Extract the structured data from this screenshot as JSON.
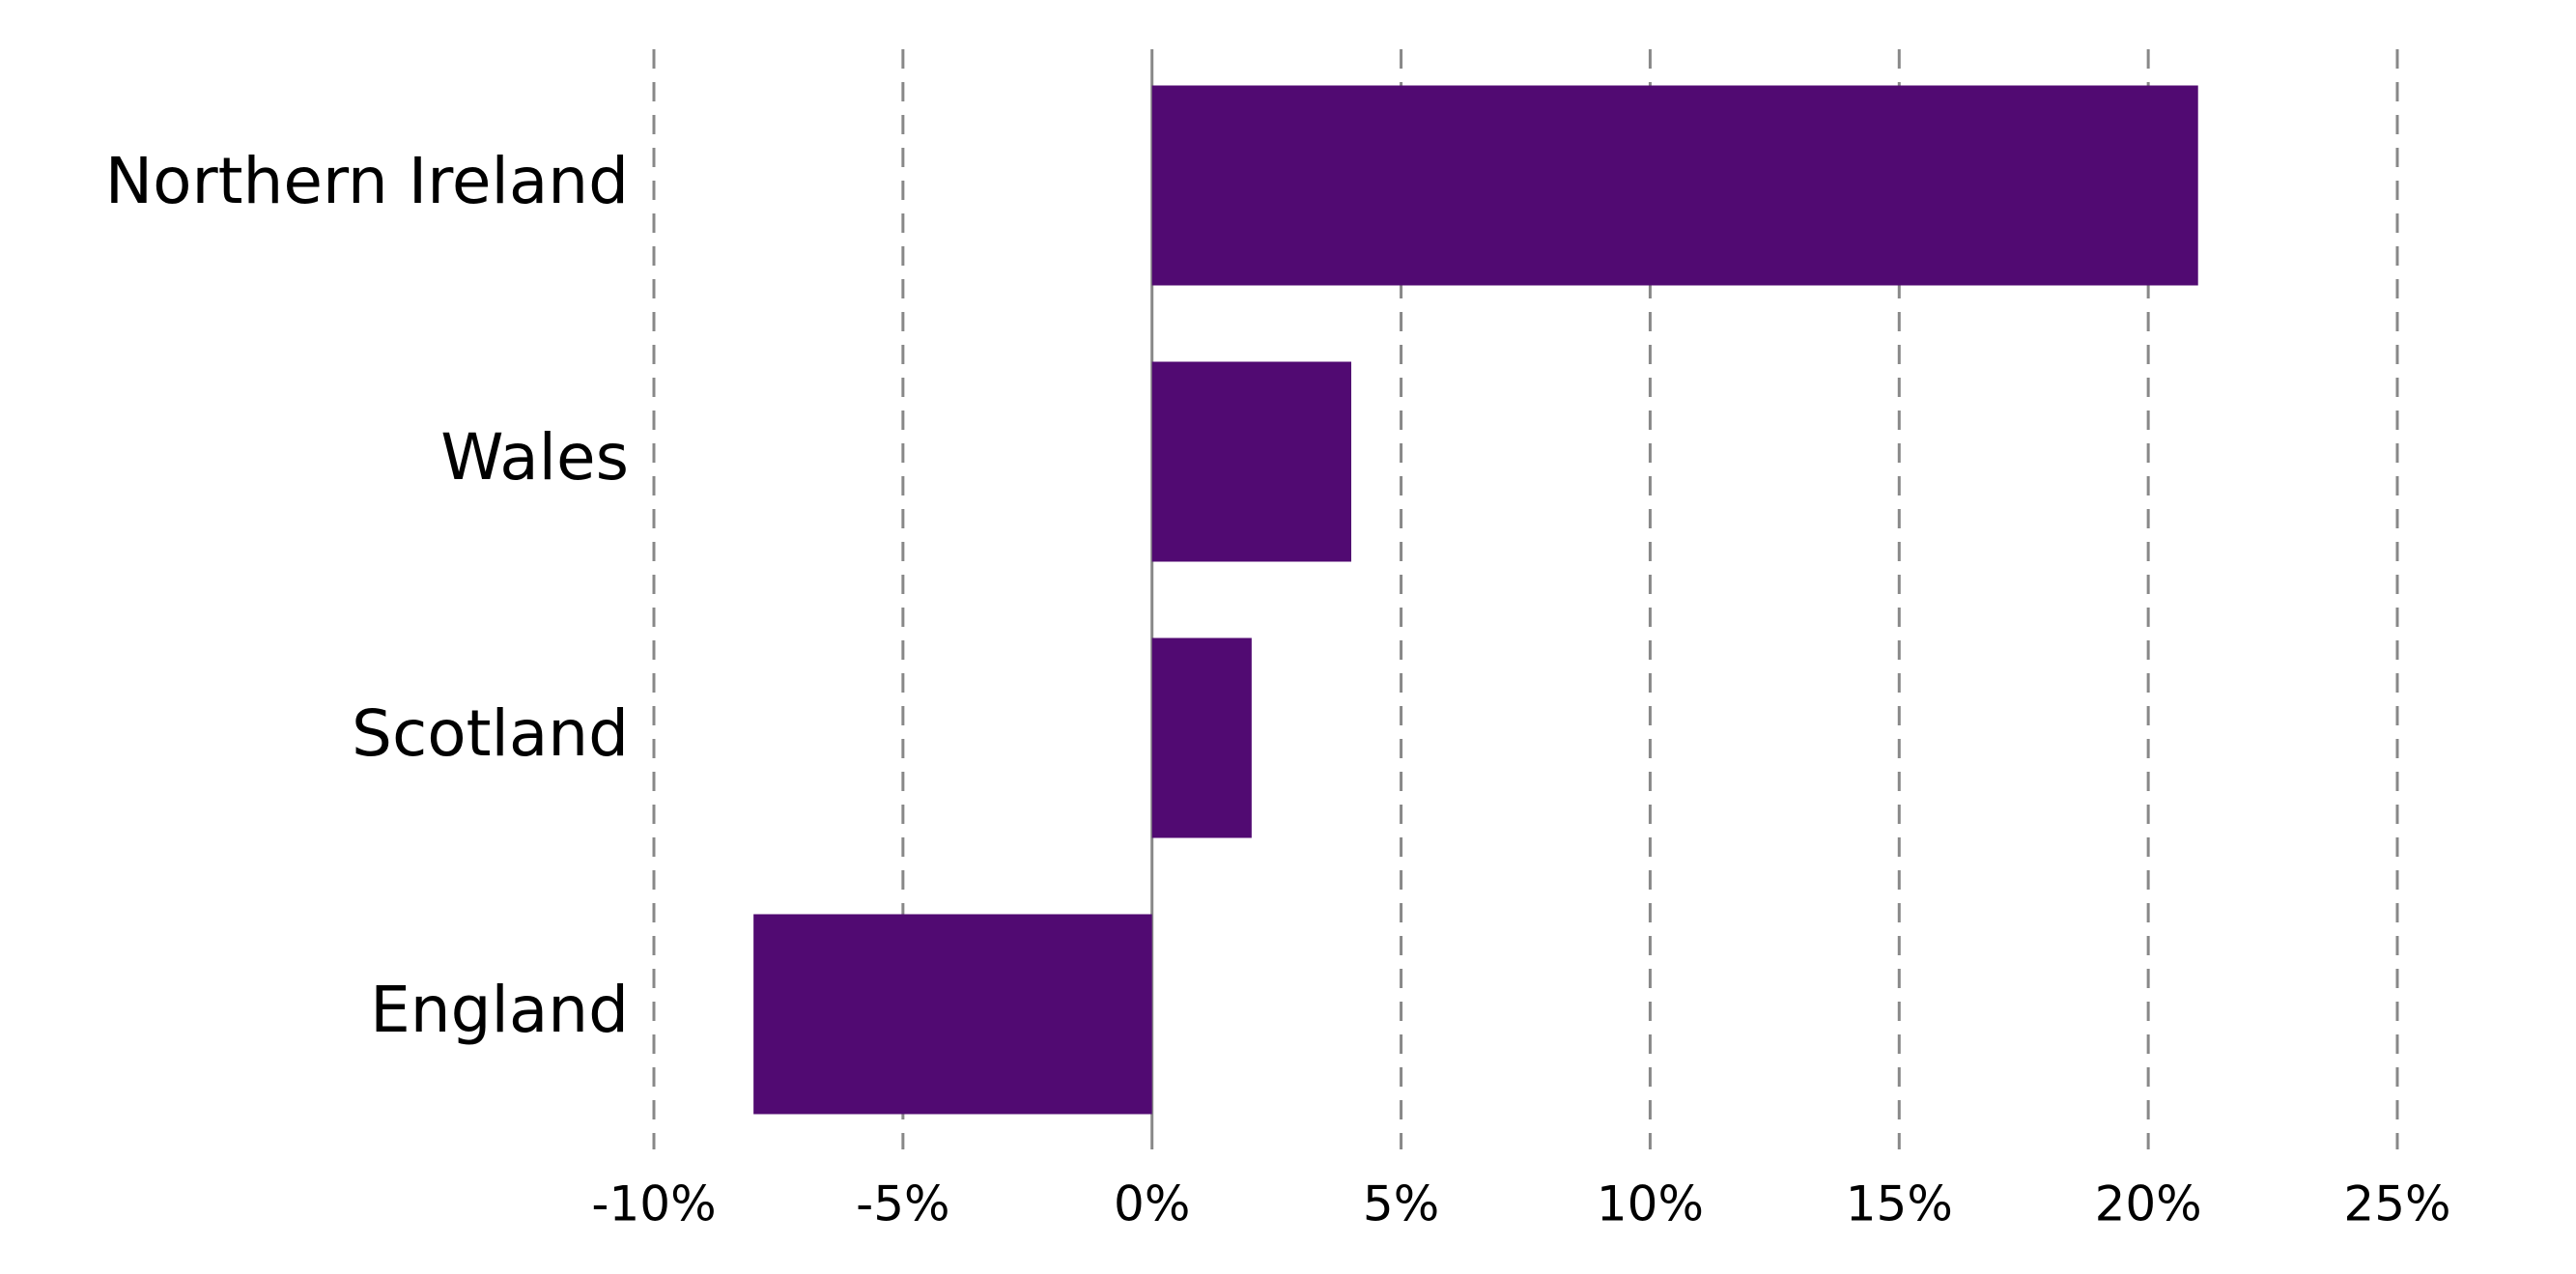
{
  "chart_data": {
    "type": "hbar",
    "categories": [
      "Northern Ireland",
      "Wales",
      "Scotland",
      "England"
    ],
    "values": [
      21,
      4,
      2,
      -8
    ],
    "color": "#510a72",
    "xlim": [
      -10,
      25
    ],
    "xticks": [
      {
        "value": -10,
        "label": "-10%"
      },
      {
        "value": -5,
        "label": "-5%"
      },
      {
        "value": 0,
        "label": "0%"
      },
      {
        "value": 5,
        "label": "5%"
      },
      {
        "value": 10,
        "label": "10%"
      },
      {
        "value": 15,
        "label": "15%"
      },
      {
        "value": 20,
        "label": "20%"
      },
      {
        "value": 25,
        "label": "25%"
      }
    ],
    "grid": true
  }
}
